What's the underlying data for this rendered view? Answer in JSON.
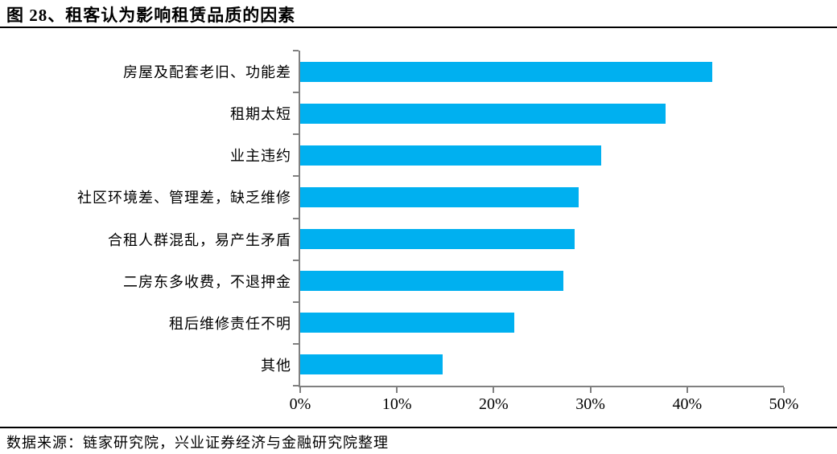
{
  "header": {
    "title": "图 28、租客认为影响租赁品质的因素"
  },
  "footer": {
    "source_note": "数据来源：链家研究院，兴业证券经济与金融研究院整理"
  },
  "colors": {
    "bar": "#00B0F0",
    "axis": "#808080",
    "rule": "#000000"
  },
  "chart_data": {
    "type": "bar",
    "orientation": "horizontal",
    "title": "图 28、租客认为影响租赁品质的因素",
    "categories": [
      "房屋及配套老旧、功能差",
      "租期太短",
      "业主违约",
      "社区环境差、管理差，缺乏维修",
      "合租人群混乱，易产生矛盾",
      "二房东多收费，不退押金",
      "租后维修责任不明",
      "其他"
    ],
    "values": [
      42.6,
      37.8,
      31.1,
      28.8,
      28.4,
      27.2,
      22.1,
      14.7
    ],
    "unit": "%",
    "xlim": [
      0,
      50
    ],
    "x_ticks": [
      "0%",
      "10%",
      "20%",
      "30%",
      "40%",
      "50%"
    ],
    "grid": false,
    "legend": "none",
    "value_labels": "none"
  }
}
